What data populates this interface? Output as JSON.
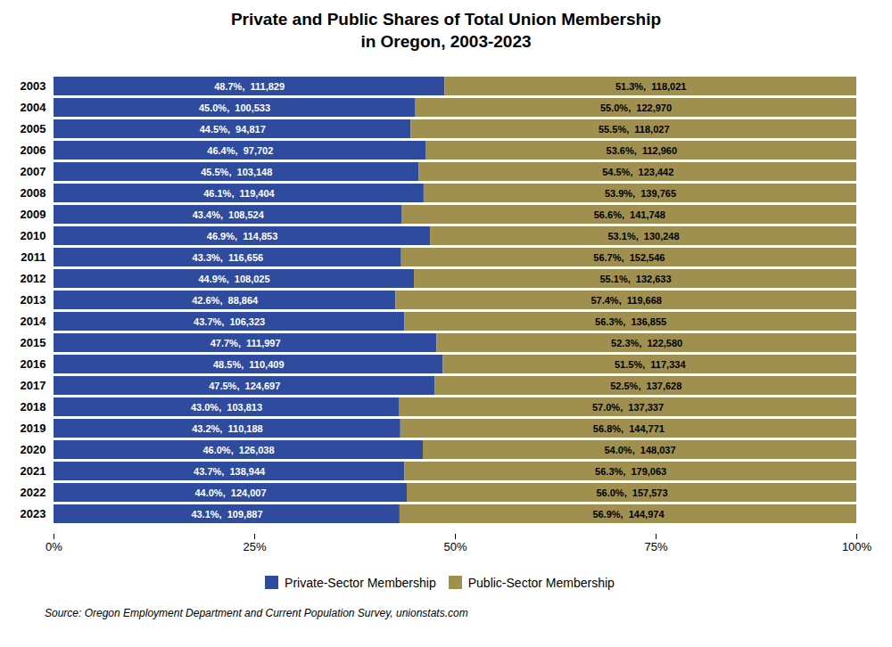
{
  "chart_data": {
    "type": "bar",
    "orientation": "horizontal",
    "stacked": true,
    "title": "Private and Public Shares of Total Union Membership\nin Oregon, 2003-2023",
    "source": "Source: Oregon Employment Department and Current Population Survey, unionstats.com",
    "categories": [
      "2003",
      "2004",
      "2005",
      "2006",
      "2007",
      "2008",
      "2009",
      "2010",
      "2011",
      "2012",
      "2013",
      "2014",
      "2015",
      "2016",
      "2017",
      "2018",
      "2019",
      "2020",
      "2021",
      "2022",
      "2023"
    ],
    "series": [
      {
        "name": "Private-Sector Membership",
        "color": "#2e4b9e",
        "values": [
          48.7,
          45.0,
          44.5,
          46.4,
          45.5,
          46.1,
          43.4,
          46.9,
          43.3,
          44.9,
          42.6,
          43.7,
          47.7,
          48.5,
          47.5,
          43.0,
          43.2,
          46.0,
          43.7,
          44.0,
          43.1
        ],
        "counts": [
          111829,
          100533,
          94817,
          97702,
          103148,
          119404,
          108524,
          114853,
          116656,
          108025,
          88864,
          106323,
          111997,
          110409,
          124697,
          103813,
          110188,
          126038,
          138944,
          124007,
          109887
        ],
        "value_labels": [
          "48.7%,  111,829",
          "45.0%,  100,533",
          "44.5%,  94,817",
          "46.4%,  97,702",
          "45.5%,  103,148",
          "46.1%,  119,404",
          "43.4%,  108,524",
          "46.9%,  114,853",
          "43.3%,  116,656",
          "44.9%,  108,025",
          "42.6%,  88,864",
          "43.7%,  106,323",
          "47.7%,  111,997",
          "48.5%,  110,409",
          "47.5%,  124,697",
          "43.0%,  103,813",
          "43.2%,  110,188",
          "46.0%,  126,038",
          "43.7%,  138,944",
          "44.0%,  124,007",
          "43.1%,  109,887"
        ]
      },
      {
        "name": "Public-Sector Membership",
        "color": "#a09050",
        "values": [
          51.3,
          55.0,
          55.5,
          53.6,
          54.5,
          53.9,
          56.6,
          53.1,
          56.7,
          55.1,
          57.4,
          56.3,
          52.3,
          51.5,
          52.5,
          57.0,
          56.8,
          54.0,
          56.3,
          56.0,
          56.9
        ],
        "counts": [
          118021,
          122970,
          118027,
          112960,
          123442,
          139765,
          141748,
          130248,
          152546,
          132633,
          119668,
          136855,
          122580,
          117334,
          137628,
          137337,
          144771,
          148037,
          179063,
          157573,
          144974
        ],
        "value_labels": [
          "51.3%,  118,021",
          "55.0%,  122,970",
          "55.5%,  118,027",
          "53.6%,  112,960",
          "54.5%,  123,442",
          "53.9%,  139,765",
          "56.6%,  141,748",
          "53.1%,  130,248",
          "56.7%,  152,546",
          "55.1%,  132,633",
          "57.4%,  119,668",
          "56.3%,  136,855",
          "52.3%,  122,580",
          "51.5%,  117,334",
          "52.5%,  137,628",
          "57.0%,  137,337",
          "56.8%,  144,771",
          "54.0%,  148,037",
          "56.3%,  179,063",
          "56.0%,  157,573",
          "56.9%,  144,974"
        ]
      }
    ],
    "xlim": [
      0,
      100
    ],
    "xticks": [
      {
        "value": 0,
        "label": "0%"
      },
      {
        "value": 25,
        "label": "25%"
      },
      {
        "value": 50,
        "label": "50%"
      },
      {
        "value": 75,
        "label": "75%"
      },
      {
        "value": 100,
        "label": "100%"
      }
    ],
    "data_labels": true,
    "legend": "bottom",
    "grid": false
  }
}
